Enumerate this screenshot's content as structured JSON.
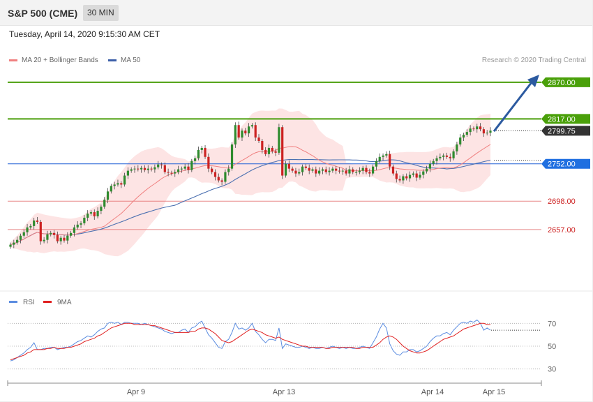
{
  "header": {
    "title": "S&P 500 (CME)",
    "timeframe": "30 MIN"
  },
  "datetime": "Tuesday, April 14, 2020 9:15:30 AM CET",
  "legend": {
    "ma20": "MA 20 + Bollinger Bands",
    "ma50": "MA 50"
  },
  "credit": "Research © 2020 Trading Central",
  "colors": {
    "up": "#2e8b2e",
    "down": "#cc2222",
    "band": "#fcd6d6",
    "ma20": "#f08080",
    "ma50": "#4a6fb0",
    "resistance": "#4a9e0a",
    "pivot": "#1f5fd6",
    "support": "#e06060",
    "arrow": "#2c5aa0",
    "rsi": "#5b8ce0",
    "rsi_ma": "#e02020",
    "last": "#333333"
  },
  "chart_data": {
    "type": "candlestick",
    "x_labels": [
      "Apr 9",
      "Apr 13",
      "Apr 14",
      "Apr 15"
    ],
    "ylim": [
      2570,
      2890
    ],
    "levels": [
      {
        "label": "2870.00",
        "value": 2870.0,
        "kind": "resistance"
      },
      {
        "label": "2817.00",
        "value": 2817.0,
        "kind": "resistance"
      },
      {
        "label": "2799.75",
        "value": 2799.75,
        "kind": "last"
      },
      {
        "label": "2752.00",
        "value": 2752.0,
        "kind": "pivot"
      },
      {
        "label": "2698.00",
        "value": 2698.0,
        "kind": "support"
      },
      {
        "label": "2657.00",
        "value": 2657.0,
        "kind": "support"
      }
    ],
    "close": [
      2635,
      2638,
      2642,
      2648,
      2653,
      2660,
      2662,
      2670,
      2668,
      2640,
      2642,
      2650,
      2652,
      2649,
      2640,
      2645,
      2641,
      2648,
      2652,
      2660,
      2664,
      2666,
      2674,
      2680,
      2682,
      2676,
      2684,
      2690,
      2700,
      2712,
      2720,
      2722,
      2724,
      2722,
      2735,
      2742,
      2744,
      2745,
      2744,
      2746,
      2743,
      2745,
      2744,
      2747,
      2751,
      2750,
      2740,
      2739,
      2738,
      2740,
      2744,
      2745,
      2748,
      2743,
      2756,
      2760,
      2772,
      2775,
      2762,
      2745,
      2740,
      2733,
      2728,
      2726,
      2740,
      2745,
      2780,
      2808,
      2790,
      2800,
      2796,
      2806,
      2808,
      2790,
      2785,
      2772,
      2766,
      2775,
      2770,
      2768,
      2805,
      2735,
      2752,
      2745,
      2742,
      2738,
      2740,
      2748,
      2746,
      2742,
      2744,
      2738,
      2742,
      2744,
      2740,
      2742,
      2745,
      2742,
      2741,
      2742,
      2738,
      2744,
      2740,
      2740,
      2742,
      2746,
      2740,
      2738,
      2748,
      2756,
      2762,
      2764,
      2766,
      2748,
      2738,
      2730,
      2728,
      2734,
      2731,
      2736,
      2738,
      2732,
      2736,
      2741,
      2745,
      2752,
      2756,
      2760,
      2762,
      2764,
      2762,
      2760,
      2770,
      2780,
      2790,
      2794,
      2798,
      2803,
      2802,
      2806,
      2802,
      2796,
      2797,
      2800
    ],
    "rsi": [
      37,
      38,
      40,
      42,
      44,
      47,
      49,
      53,
      47,
      47,
      48,
      48,
      49,
      49,
      47,
      48,
      49,
      49,
      50,
      52,
      54,
      55,
      57,
      59,
      58,
      60,
      63,
      65,
      66,
      70,
      71,
      70,
      71,
      69,
      71,
      71,
      70,
      70,
      70,
      69,
      70,
      69,
      68,
      67,
      66,
      65,
      63,
      62,
      61,
      62,
      62,
      64,
      65,
      62,
      66,
      67,
      70,
      72,
      66,
      60,
      57,
      53,
      49,
      48,
      54,
      56,
      62,
      70,
      65,
      66,
      64,
      66,
      70,
      63,
      60,
      56,
      53,
      56,
      56,
      55,
      66,
      48,
      52,
      51,
      50,
      49,
      49,
      50,
      49,
      48,
      49,
      48,
      48,
      49,
      48,
      49,
      50,
      49,
      48,
      49,
      48,
      49,
      48,
      48,
      49,
      50,
      49,
      48,
      53,
      58,
      65,
      70,
      66,
      52,
      46,
      43,
      42,
      45,
      45,
      47,
      47,
      45,
      46,
      48,
      50,
      54,
      57,
      59,
      59,
      61,
      62,
      60,
      64,
      67,
      70,
      71,
      70,
      72,
      71,
      73,
      70,
      64,
      66,
      64
    ],
    "rsi_ma": [
      38,
      39,
      40,
      41,
      42,
      44,
      45,
      47,
      47,
      47,
      47,
      48,
      48,
      49,
      48,
      48,
      48,
      49,
      49,
      50,
      51,
      52,
      54,
      55,
      56,
      57,
      59,
      60,
      62,
      64,
      66,
      67,
      68,
      69,
      70,
      70,
      70,
      69,
      69,
      69,
      69,
      69,
      68,
      68,
      67,
      66,
      65,
      64,
      63,
      62,
      62,
      62,
      62,
      62,
      63,
      63,
      65,
      66,
      66,
      65,
      63,
      61,
      58,
      55,
      54,
      53,
      54,
      56,
      58,
      60,
      62,
      64,
      65,
      64,
      63,
      62,
      60,
      59,
      58,
      57,
      58,
      56,
      55,
      54,
      53,
      52,
      51,
      50,
      50,
      49,
      49,
      49,
      49,
      49,
      48,
      48,
      49,
      49,
      49,
      49,
      49,
      49,
      49,
      48,
      48,
      49,
      49,
      49,
      49,
      51,
      53,
      56,
      58,
      59,
      58,
      56,
      53,
      50,
      48,
      46,
      45,
      44,
      44,
      45,
      46,
      48,
      50,
      52,
      54,
      56,
      57,
      58,
      59,
      61,
      63,
      65,
      66,
      67,
      68,
      69,
      70,
      70,
      69,
      69
    ],
    "rsi_ticks": [
      70,
      50,
      30
    ],
    "rsi_ylim": [
      20,
      80
    ]
  }
}
